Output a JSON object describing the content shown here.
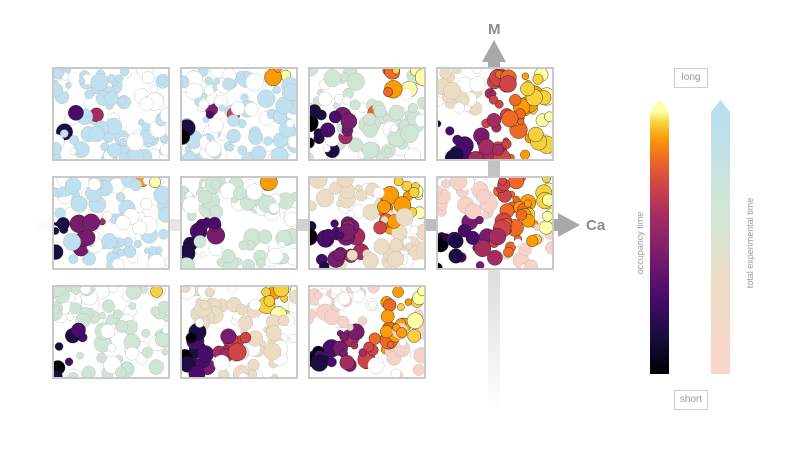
{
  "axes": {
    "x_label": "Ca",
    "y_label": "M"
  },
  "legend": {
    "top_label": "long",
    "bottom_label": "short",
    "bar_left_label": "occupancy time",
    "bar_right_label": "total experimental time"
  },
  "grid": {
    "rows": [
      {
        "tints": [
          "blue",
          "blue",
          "green",
          "tan"
        ],
        "invaded": [
          0.42,
          0.48,
          0.6,
          1.0
        ]
      },
      {
        "tints": [
          "blue",
          "green",
          "tan",
          "pink"
        ],
        "invaded": [
          0.5,
          0.55,
          0.68,
          0.85
        ]
      },
      {
        "tints": [
          "green",
          "tan",
          "pink"
        ],
        "invaded": [
          0.5,
          0.62,
          0.75
        ]
      }
    ]
  },
  "colors": {
    "blue": "#bfe1ef",
    "green": "#cfe6d6",
    "tan": "#ecdcc4",
    "pink": "#f7d2c8",
    "arrow": "#9c9c9c"
  }
}
